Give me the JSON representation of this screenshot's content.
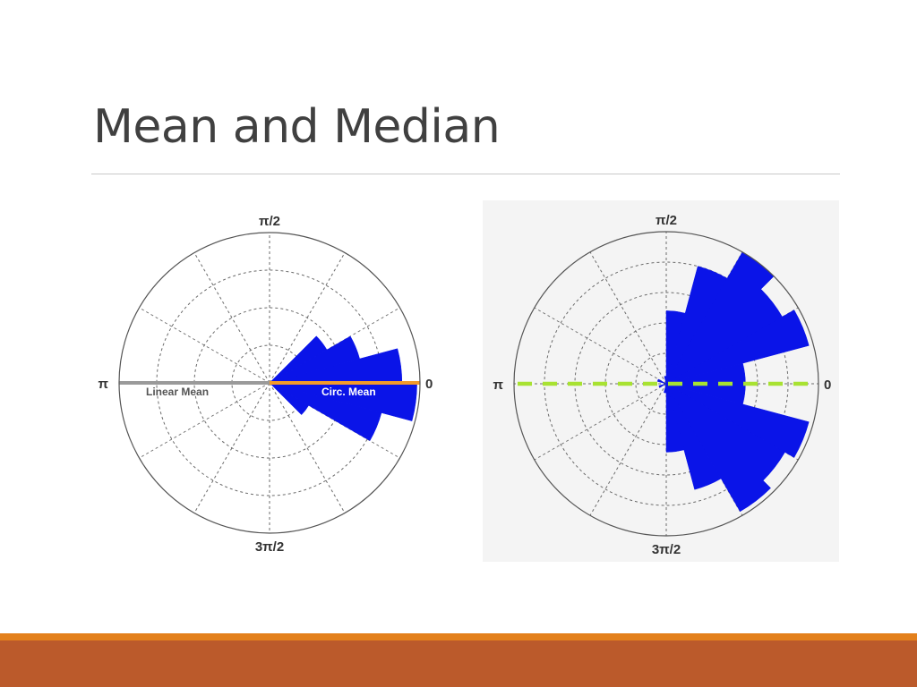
{
  "slide": {
    "title": "Mean and Median"
  },
  "colors": {
    "wedge": "#0a14e8",
    "grid": "#6b6b6b",
    "linear_mean": "#9a9a9a",
    "circ_mean": "#f39a2a",
    "median_line": "#a8e232",
    "footer_accent": "#e3801c",
    "footer": "#bb5a2b"
  },
  "chart_data": [
    {
      "type": "polar-histogram",
      "title": "",
      "angle_labels": {
        "deg0": "0",
        "deg90": "π/2",
        "deg180": "π",
        "deg270": "3π/2"
      },
      "rmax": 1.0,
      "rings": [
        0.25,
        0.5,
        0.75,
        1.0
      ],
      "spokes_deg": [
        0,
        30,
        60,
        90,
        120,
        150,
        180,
        210,
        240,
        270,
        300,
        330
      ],
      "bins": [
        {
          "start_deg": 0,
          "end_deg": 15,
          "r": 0.88
        },
        {
          "start_deg": 15,
          "end_deg": 30,
          "r": 0.62
        },
        {
          "start_deg": 30,
          "end_deg": 45,
          "r": 0.44
        },
        {
          "start_deg": -15,
          "end_deg": 0,
          "r": 0.98
        },
        {
          "start_deg": -30,
          "end_deg": -15,
          "r": 0.77
        },
        {
          "start_deg": -45,
          "end_deg": -30,
          "r": 0.3
        }
      ],
      "lines": [
        {
          "name": "Linear Mean",
          "angle_deg": 180,
          "r": 1.0,
          "style": "solid"
        },
        {
          "name": "Circ. Mean",
          "angle_deg": 0,
          "r": 1.0,
          "style": "solid"
        }
      ]
    },
    {
      "type": "polar-histogram",
      "title": "",
      "angle_labels": {
        "deg0": "0",
        "deg90": "π/2",
        "deg180": "π",
        "deg270": "3π/2"
      },
      "rmax": 1.0,
      "rings": [
        0.2,
        0.4,
        0.6,
        0.8,
        1.0
      ],
      "spokes_deg": [
        0,
        30,
        60,
        90,
        120,
        150,
        180,
        210,
        240,
        270,
        300,
        330
      ],
      "bins": [
        {
          "start_deg": 75,
          "end_deg": 90,
          "r": 0.48
        },
        {
          "start_deg": 60,
          "end_deg": 75,
          "r": 0.8
        },
        {
          "start_deg": 45,
          "end_deg": 60,
          "r": 1.0
        },
        {
          "start_deg": 30,
          "end_deg": 45,
          "r": 0.88
        },
        {
          "start_deg": 15,
          "end_deg": 30,
          "r": 0.97
        },
        {
          "start_deg": 0,
          "end_deg": 15,
          "r": 0.52
        },
        {
          "start_deg": -15,
          "end_deg": 0,
          "r": 0.52
        },
        {
          "start_deg": -30,
          "end_deg": -15,
          "r": 0.97
        },
        {
          "start_deg": -45,
          "end_deg": -30,
          "r": 0.9
        },
        {
          "start_deg": -60,
          "end_deg": -45,
          "r": 0.97
        },
        {
          "start_deg": -75,
          "end_deg": -60,
          "r": 0.72
        },
        {
          "start_deg": -90,
          "end_deg": -75,
          "r": 0.45
        },
        {
          "start_deg": 90,
          "end_deg": 105,
          "r": 0.05
        },
        {
          "start_deg": 150,
          "end_deg": 165,
          "r": 0.06
        },
        {
          "start_deg": 195,
          "end_deg": 210,
          "r": 0.05
        },
        {
          "start_deg": 255,
          "end_deg": 270,
          "r": 0.06
        }
      ],
      "lines": [
        {
          "name": "",
          "angle_deg": 0,
          "r": 1.0,
          "style": "dashed",
          "through_center": true
        }
      ]
    }
  ]
}
